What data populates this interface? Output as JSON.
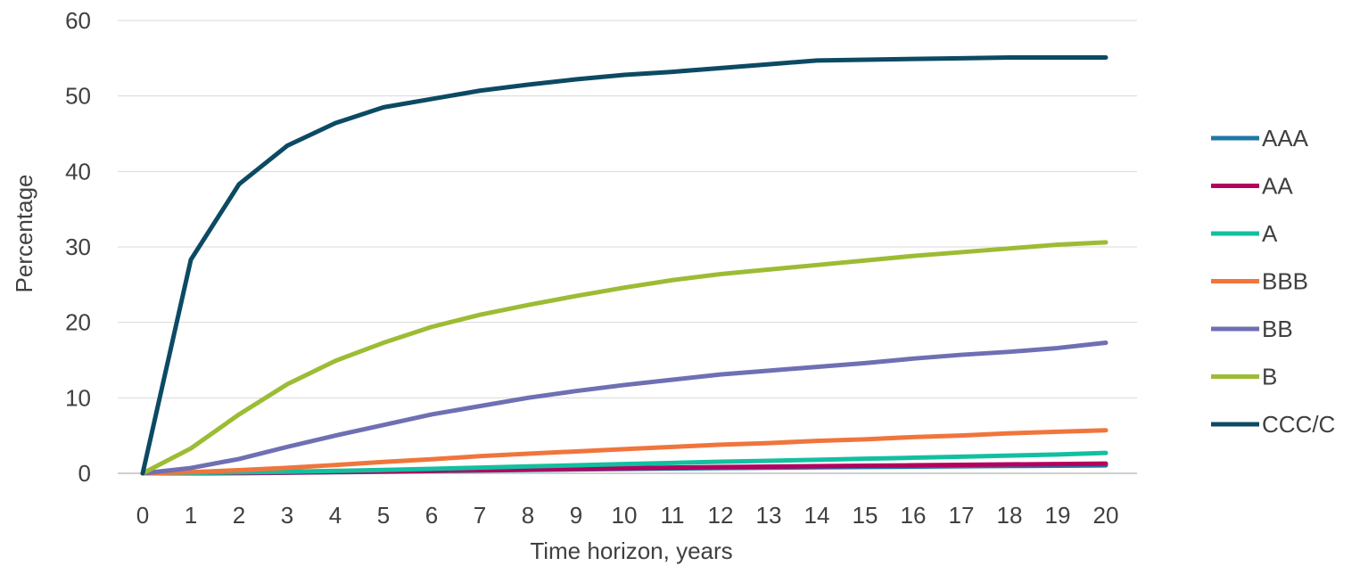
{
  "chart_data": {
    "type": "line",
    "title": "",
    "xlabel": "Time horizon, years",
    "ylabel": "Percentage",
    "x": [
      0,
      1,
      2,
      3,
      4,
      5,
      6,
      7,
      8,
      9,
      10,
      11,
      12,
      13,
      14,
      15,
      16,
      17,
      18,
      19,
      20
    ],
    "ylim": [
      0,
      60
    ],
    "yticks": [
      0,
      10,
      20,
      30,
      40,
      50,
      60
    ],
    "grid": true,
    "legend_position": "right",
    "series": [
      {
        "name": "AAA",
        "color": "#1f78a4",
        "values": [
          0,
          0.0,
          0.02,
          0.07,
          0.14,
          0.2,
          0.3,
          0.37,
          0.45,
          0.52,
          0.58,
          0.64,
          0.7,
          0.74,
          0.79,
          0.84,
          0.88,
          0.93,
          0.97,
          1.0,
          1.05
        ]
      },
      {
        "name": "AA",
        "color": "#b5005f",
        "values": [
          0,
          0.02,
          0.06,
          0.1,
          0.17,
          0.25,
          0.34,
          0.43,
          0.52,
          0.6,
          0.68,
          0.75,
          0.82,
          0.88,
          0.94,
          1.0,
          1.06,
          1.12,
          1.18,
          1.22,
          1.28
        ]
      },
      {
        "name": "A",
        "color": "#12c0a0",
        "values": [
          0,
          0.05,
          0.13,
          0.21,
          0.32,
          0.45,
          0.59,
          0.75,
          0.91,
          1.07,
          1.22,
          1.38,
          1.53,
          1.66,
          1.79,
          1.93,
          2.06,
          2.2,
          2.35,
          2.5,
          2.7
        ]
      },
      {
        "name": "BBB",
        "color": "#f0753c",
        "values": [
          0,
          0.15,
          0.42,
          0.73,
          1.1,
          1.5,
          1.86,
          2.27,
          2.6,
          2.9,
          3.2,
          3.5,
          3.8,
          4.0,
          4.3,
          4.5,
          4.8,
          5.0,
          5.3,
          5.5,
          5.7
        ]
      },
      {
        "name": "BB",
        "color": "#6f6fb4",
        "values": [
          0,
          0.7,
          1.9,
          3.5,
          5.0,
          6.4,
          7.8,
          8.9,
          10.0,
          10.9,
          11.7,
          12.4,
          13.1,
          13.6,
          14.1,
          14.6,
          15.2,
          15.7,
          16.1,
          16.6,
          17.3
        ]
      },
      {
        "name": "B",
        "color": "#9cbc34",
        "values": [
          0,
          3.3,
          7.8,
          11.8,
          14.9,
          17.3,
          19.4,
          21.0,
          22.3,
          23.5,
          24.6,
          25.6,
          26.4,
          27.0,
          27.6,
          28.2,
          28.8,
          29.3,
          29.8,
          30.3,
          30.6
        ]
      },
      {
        "name": "CCC/C",
        "color": "#0c4a63",
        "values": [
          0,
          28.3,
          38.3,
          43.4,
          46.4,
          48.5,
          49.6,
          50.7,
          51.5,
          52.2,
          52.8,
          53.2,
          53.7,
          54.2,
          54.7,
          54.8,
          54.9,
          55.0,
          55.1,
          55.1,
          55.1
        ]
      }
    ]
  }
}
